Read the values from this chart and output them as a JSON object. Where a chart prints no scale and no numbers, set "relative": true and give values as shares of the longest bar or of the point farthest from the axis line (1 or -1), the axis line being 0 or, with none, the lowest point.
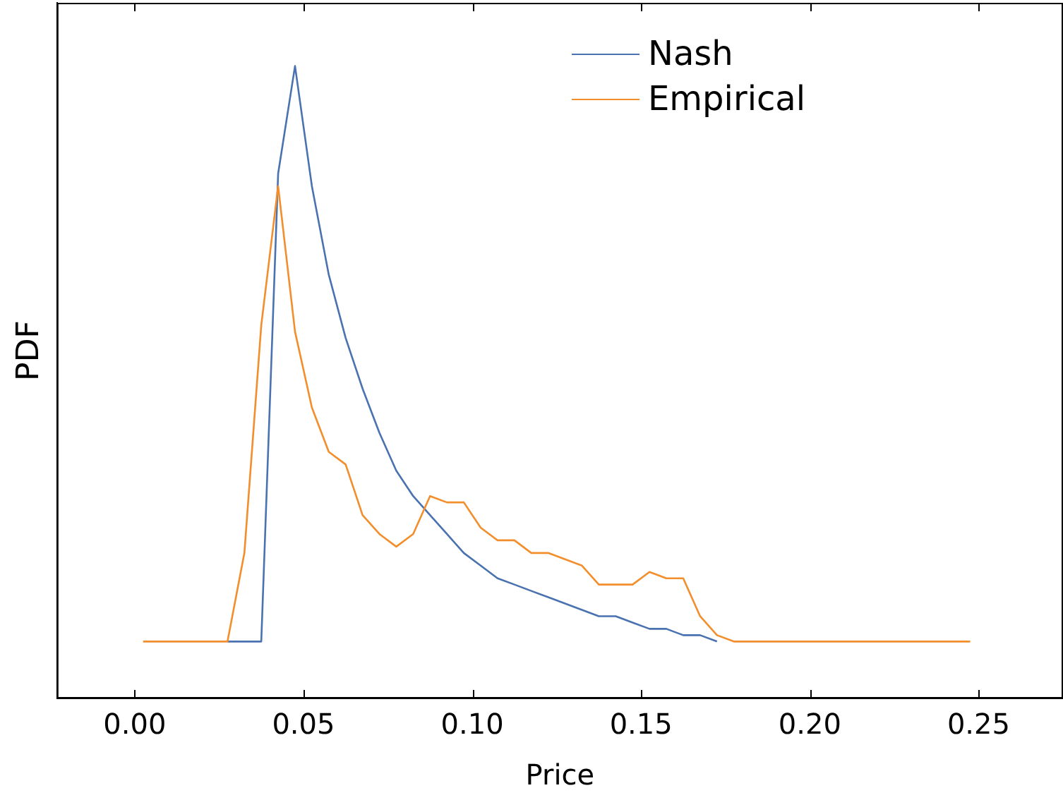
{
  "chart_data": {
    "type": "line",
    "relative": true,
    "xlabel": "Price",
    "ylabel": "PDF",
    "x": [
      0.0025,
      0.0075,
      0.0125,
      0.0175,
      0.0225,
      0.0275,
      0.0325,
      0.0375,
      0.0425,
      0.0475,
      0.0525,
      0.0575,
      0.0625,
      0.0675,
      0.0725,
      0.0775,
      0.0825,
      0.0875,
      0.0925,
      0.0975,
      0.1025,
      0.1075,
      0.1125,
      0.1175,
      0.1225,
      0.1275,
      0.1325,
      0.1375,
      0.1425,
      0.1475,
      0.1525,
      0.1575,
      0.1625,
      0.1675,
      0.1725,
      0.1775,
      0.1825,
      0.1875,
      0.1925,
      0.1975,
      0.2025,
      0.2075,
      0.2125,
      0.2175,
      0.2225,
      0.2275,
      0.2325,
      0.2375,
      0.2425,
      0.2475
    ],
    "xlim": [
      -0.023,
      0.275
    ],
    "xticks": [
      {
        "value": 0,
        "label": "0.00"
      },
      {
        "value": 0.05,
        "label": "0.05"
      },
      {
        "value": 0.1,
        "label": "0.10"
      },
      {
        "value": 0.15,
        "label": "0.15"
      },
      {
        "value": 0.2,
        "label": "0.20"
      },
      {
        "value": 0.25,
        "label": "0.25"
      }
    ],
    "series": [
      {
        "name": "Nash",
        "color": "#4a72b0",
        "values": [
          null,
          null,
          null,
          null,
          null,
          0.09,
          0.09,
          0.09,
          0.83,
          1,
          0.81,
          0.67,
          0.57,
          0.49,
          0.42,
          0.36,
          0.32,
          0.29,
          0.26,
          0.23,
          0.21,
          0.19,
          0.18,
          0.17,
          0.16,
          0.15,
          0.14,
          0.13,
          0.13,
          0.12,
          0.11,
          0.11,
          0.1,
          0.1,
          0.09,
          null,
          null,
          null,
          null,
          null,
          null,
          null,
          null,
          null,
          null,
          null,
          null,
          null,
          null,
          null
        ]
      },
      {
        "name": "Empirical",
        "color": "#f28e2b",
        "values": [
          0.09,
          0.09,
          0.09,
          0.09,
          0.09,
          0.09,
          0.23,
          0.59,
          0.81,
          0.58,
          0.46,
          0.39,
          0.37,
          0.29,
          0.26,
          0.24,
          0.26,
          0.32,
          0.31,
          0.31,
          0.27,
          0.25,
          0.25,
          0.23,
          0.23,
          0.22,
          0.21,
          0.18,
          0.18,
          0.18,
          0.2,
          0.19,
          0.19,
          0.13,
          0.1,
          0.09,
          0.09,
          0.09,
          0.09,
          0.09,
          0.09,
          0.09,
          0.09,
          0.09,
          0.09,
          0.09,
          0.09,
          0.09,
          0.09,
          0.09
        ]
      }
    ],
    "legend": "top right",
    "marker": "none",
    "line_style": "solid",
    "grid": false
  }
}
